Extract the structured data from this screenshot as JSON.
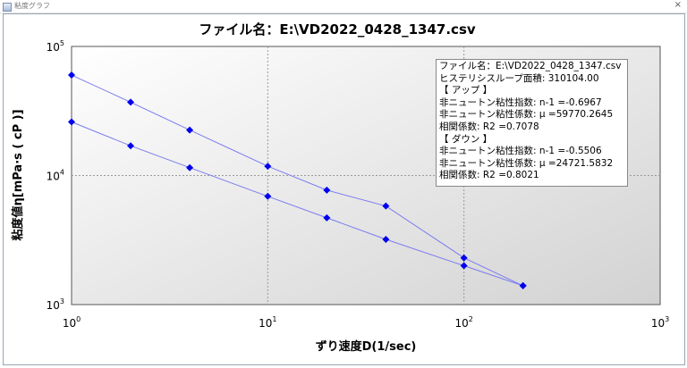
{
  "window": {
    "title": "粘度グラフ",
    "close_glyph": "×"
  },
  "chart_data": {
    "type": "scatter",
    "title": "ファイル名：E:\\VD2022_0428_1347.csv",
    "xlabel": "ずり速度D(1/sec)",
    "ylabel": "粘度値η[mPa·s ( cP )]",
    "x_scale": "log",
    "y_scale": "log",
    "xlim": [
      1,
      1000
    ],
    "ylim": [
      1000,
      100000
    ],
    "x_ticks": [
      {
        "value": 1,
        "base": "10",
        "exp": "0"
      },
      {
        "value": 10,
        "base": "10",
        "exp": "1"
      },
      {
        "value": 100,
        "base": "10",
        "exp": "2"
      },
      {
        "value": 1000,
        "base": "10",
        "exp": "3"
      }
    ],
    "y_ticks": [
      {
        "value": 1000,
        "base": "10",
        "exp": "3"
      },
      {
        "value": 10000,
        "base": "10",
        "exp": "4"
      },
      {
        "value": 100000,
        "base": "10",
        "exp": "5"
      }
    ],
    "grid": true,
    "series_color": "#0000ee",
    "line_color": "#7b7bf0",
    "series": [
      {
        "x": [
          1,
          2,
          4,
          10,
          20,
          40,
          100,
          200
        ],
        "y": [
          60000,
          37000,
          22500,
          11800,
          7700,
          5800,
          2300,
          1400
        ]
      },
      {
        "x": [
          1,
          2,
          4,
          10,
          20,
          40,
          100,
          200
        ],
        "y": [
          26000,
          17000,
          11500,
          6900,
          4700,
          3200,
          2000,
          1400
        ]
      }
    ]
  },
  "info_box": {
    "lines": [
      "ファイル名：E:\\VD2022_0428_1347.csv",
      "ヒステリシスループ面積: 310104.00",
      "【 アップ 】",
      "非ニュートン粘性指数: n-1 =-0.6967",
      "非ニュートン粘性係数: μ =59770.2645",
      "相関係数: R2 =0.7078",
      "【 ダウン 】",
      "非ニュートン粘性指数: n-1 =-0.5506",
      "非ニュートン粘性係数: μ =24721.5832",
      "相関係数: R2 =0.8021"
    ]
  }
}
